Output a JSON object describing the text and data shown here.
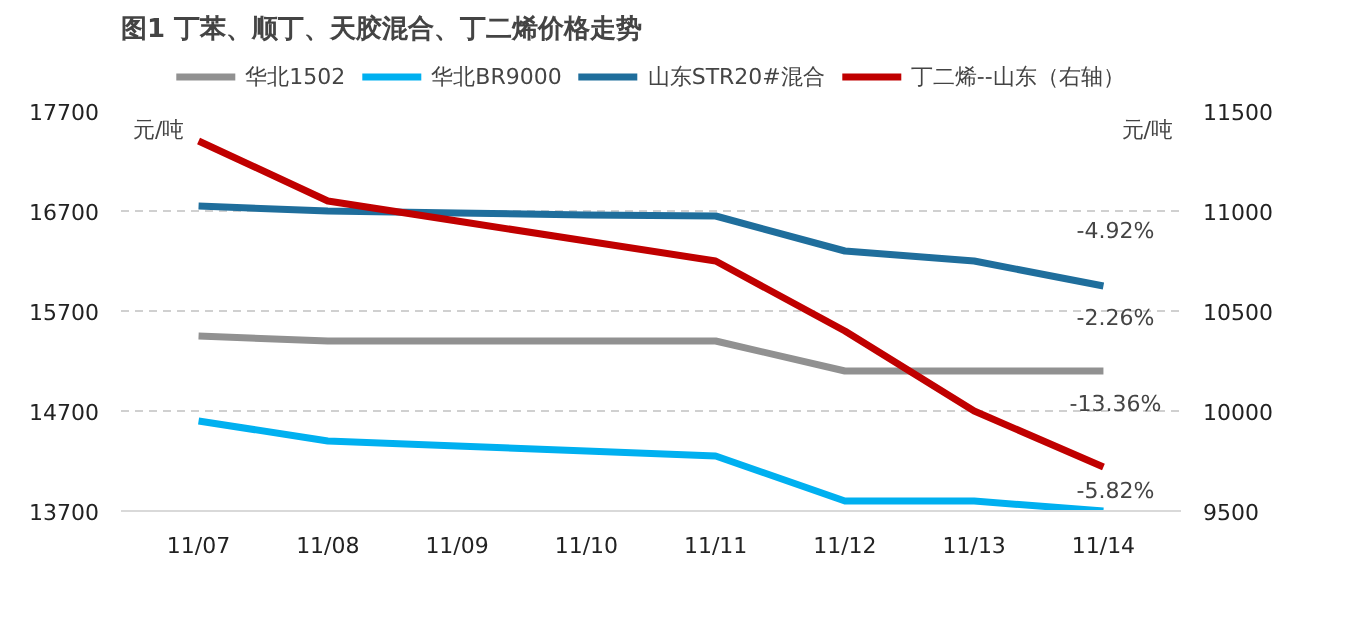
{
  "chart_data": {
    "type": "line",
    "title": "图1 丁苯、顺丁、天胶混合、丁二烯价格走势",
    "categories": [
      "11/07",
      "11/08",
      "11/09",
      "11/10",
      "11/11",
      "11/12",
      "11/13",
      "11/14"
    ],
    "series": [
      {
        "name": "华北1502",
        "color": "#919191",
        "values": [
          15450,
          15400,
          15400,
          15400,
          15400,
          15100,
          15100,
          15100
        ]
      },
      {
        "name": "华北BR9000",
        "color": "#00b0f0",
        "values": [
          14600,
          14400,
          14350,
          14300,
          14250,
          13800,
          13800,
          13700
        ]
      },
      {
        "name": "山东STR20#混合",
        "color": "#1f6e9c",
        "values": [
          16750,
          16700,
          16680,
          16660,
          16650,
          16300,
          16200,
          15950
        ]
      },
      {
        "name": "丁二烯--山东（右轴）",
        "color": "#c00000",
        "axis": "y2",
        "values": [
          11350,
          11050,
          10950,
          10850,
          10750,
          10400,
          10000,
          9720
        ]
      }
    ],
    "ylabel": "元/吨",
    "y2label": "元/吨",
    "ylim": [
      13700,
      17700
    ],
    "yticks": [
      13700,
      14700,
      15700,
      16700,
      17700
    ],
    "y2lim": [
      9500,
      11500
    ],
    "y2ticks": [
      9500,
      10000,
      10500,
      11000,
      11500
    ],
    "grid": "y",
    "legend": "top",
    "line_style": "solid",
    "marker": "none",
    "annotations": [
      "-4.92%",
      "-2.26%",
      "-13.36%",
      "-5.82%"
    ]
  }
}
